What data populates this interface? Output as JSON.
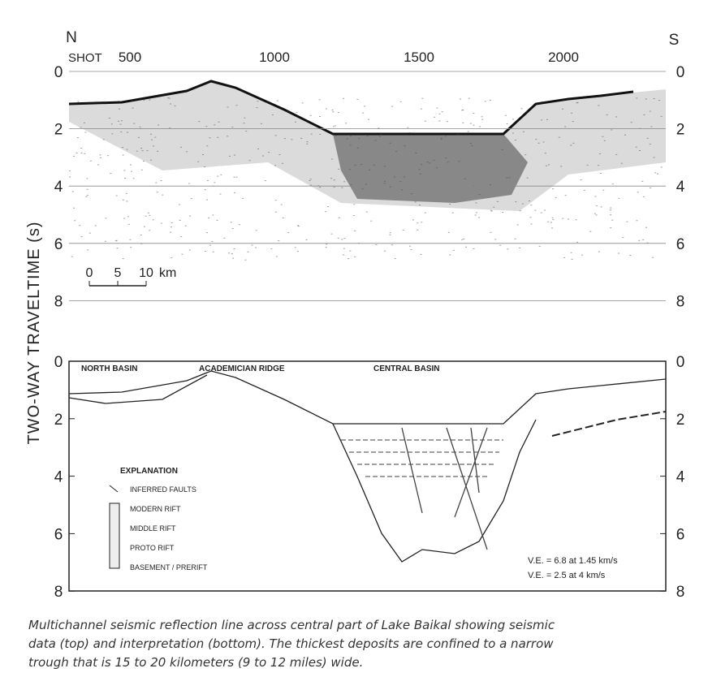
{
  "header": {
    "north": "N",
    "south": "S",
    "shot_label": "SHOT",
    "shot_ticks": [
      500,
      1000,
      1500,
      2000
    ]
  },
  "y_axis": {
    "label": "TWO-WAY  TRAVELTIME (s)",
    "ticks": [
      0,
      2,
      4,
      6,
      8
    ]
  },
  "scale_bar": {
    "ticks": [
      0,
      5,
      10
    ],
    "unit": "km"
  },
  "interpretation": {
    "regions": [
      "NORTH BASIN",
      "ACADEMICIAN RIDGE",
      "CENTRAL BASIN"
    ],
    "explanation": {
      "title": "EXPLANATION",
      "items": [
        "INFERRED FAULTS",
        "MODERN RIFT",
        "MIDDLE RIFT",
        "PROTO RIFT",
        "BASEMENT / PRERIFT"
      ]
    },
    "notes": [
      "V.E. = 6.8 at 1.45 km/s",
      "V.E. = 2.5 at 4 km/s"
    ]
  },
  "caption": [
    "Multichannel seismic reflection line across central part of Lake Baikal showing seismic",
    "data (top) and interpretation (bottom).  The thickest deposits are confined to a narrow",
    "trough that is 15 to 20 kilometers (9 to 12 miles) wide."
  ]
}
